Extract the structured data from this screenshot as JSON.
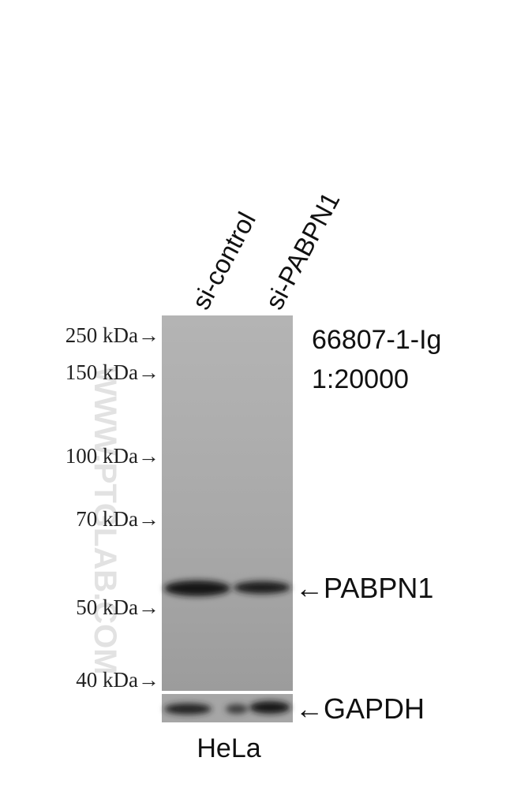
{
  "lanes": [
    "si-control",
    "si-PABPN1"
  ],
  "markers": [
    "250 kDa→",
    "150 kDa→",
    "100 kDa→",
    "70 kDa→",
    "50 kDa→",
    "40 kDa→"
  ],
  "antibody": "66807-1-Ig",
  "dilution": "1:20000",
  "bands": [
    "←PABPN1",
    "←GAPDH"
  ],
  "cell_line": "HeLa",
  "watermark": "WWW.PTGLAB.COM"
}
